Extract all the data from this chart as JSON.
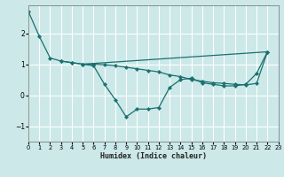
{
  "xlabel": "Humidex (Indice chaleur)",
  "background_color": "#cce8e8",
  "line_color": "#1a7070",
  "grid_color": "#b0d8d8",
  "xlim": [
    0,
    23
  ],
  "ylim": [
    -1.5,
    2.9
  ],
  "yticks": [
    -1,
    0,
    1,
    2
  ],
  "xticks": [
    0,
    1,
    2,
    3,
    4,
    5,
    6,
    7,
    8,
    9,
    10,
    11,
    12,
    13,
    14,
    15,
    16,
    17,
    18,
    19,
    20,
    21,
    22,
    23
  ],
  "line1_x": [
    0,
    1,
    2,
    3,
    4,
    5,
    6,
    7,
    8,
    9,
    10,
    11,
    12,
    13,
    14,
    15,
    16,
    17,
    18,
    19,
    20,
    21,
    22
  ],
  "line1_y": [
    2.7,
    1.9,
    1.2,
    1.1,
    1.05,
    1.0,
    0.95,
    0.35,
    -0.15,
    -0.7,
    -0.45,
    -0.45,
    -0.4,
    0.25,
    0.5,
    0.55,
    0.4,
    0.35,
    0.3,
    0.3,
    0.35,
    0.7,
    1.4
  ],
  "line2_x": [
    3,
    4,
    5,
    6,
    7,
    8,
    9,
    10,
    11,
    12,
    13,
    14,
    15,
    16,
    17,
    18,
    19,
    20,
    21,
    22
  ],
  "line2_y": [
    1.1,
    1.05,
    1.0,
    1.0,
    0.98,
    0.95,
    0.9,
    0.85,
    0.8,
    0.75,
    0.65,
    0.6,
    0.5,
    0.45,
    0.4,
    0.38,
    0.35,
    0.33,
    0.38,
    1.4
  ],
  "line3_x": [
    5,
    22
  ],
  "line3_y": [
    1.0,
    1.4
  ]
}
